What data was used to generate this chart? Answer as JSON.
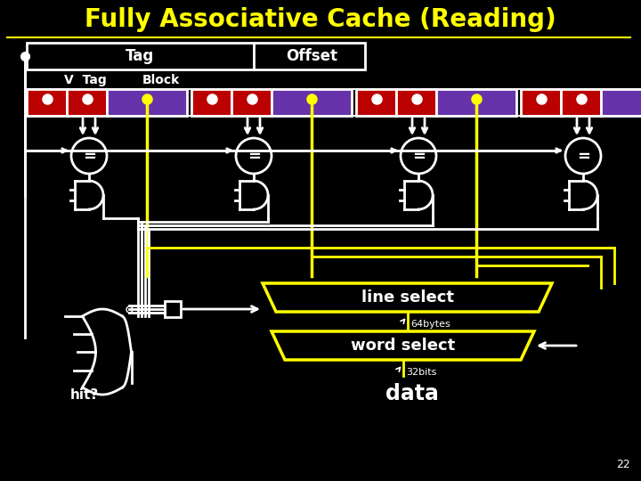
{
  "title": "Fully Associative Cache (Reading)",
  "title_color": "#FFFF00",
  "title_fontsize": 20,
  "bg_color": "#000000",
  "white": "#FFFFFF",
  "yellow": "#FFFF00",
  "red": "#BB0000",
  "purple": "#6633AA",
  "page_number": "22",
  "tag_label": "Tag",
  "offset_label": "Offset",
  "v_tag_label": "V  Tag",
  "block_label": "Block",
  "line_select_label": "line select",
  "word_select_label": "word select",
  "bytes_label": "64bytes",
  "bits_label": "32bits",
  "hit_label": "hit?",
  "data_label": "data",
  "equal_sign": "="
}
